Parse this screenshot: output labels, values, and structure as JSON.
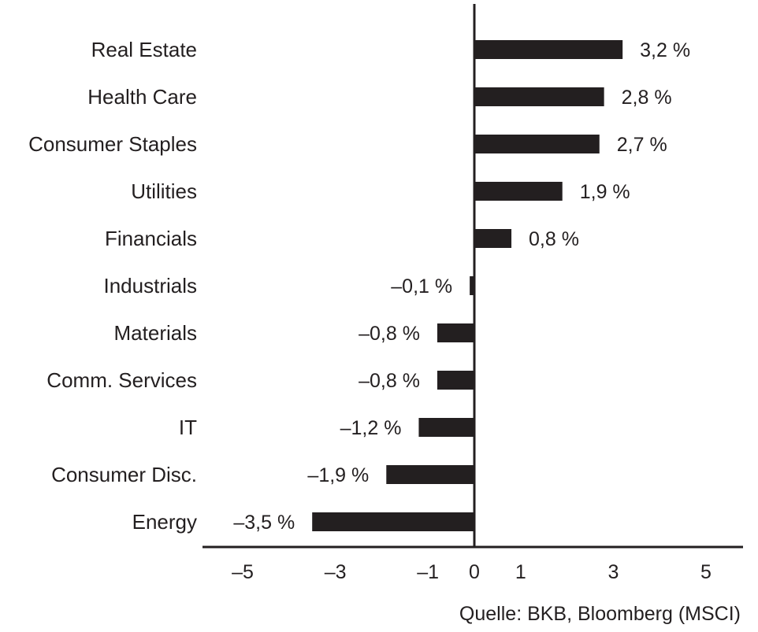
{
  "chart_data": {
    "type": "bar",
    "orientation": "horizontal",
    "categories": [
      "Real Estate",
      "Health Care",
      "Consumer Staples",
      "Utilities",
      "Financials",
      "Industrials",
      "Materials",
      "Comm. Services",
      "IT",
      "Consumer Disc.",
      "Energy"
    ],
    "values": [
      3.2,
      2.8,
      2.7,
      1.9,
      0.8,
      -0.1,
      -0.8,
      -0.8,
      -1.2,
      -1.9,
      -3.5
    ],
    "value_labels": [
      "3,2 %",
      "2,8 %",
      "2,7 %",
      "1,9 %",
      "0,8 %",
      "–0,1 %",
      "–0,8 %",
      "–0,8 %",
      "–1,2 %",
      "–1,9 %",
      "–3,5 %"
    ],
    "xticks": [
      -5,
      -3,
      -1,
      0,
      1,
      3,
      5
    ],
    "xtick_labels": [
      "–5",
      "–3",
      "–1",
      "0",
      "1",
      "3",
      "5"
    ],
    "xlim": [
      -5.8,
      5.8
    ],
    "title": "",
    "xlabel": "",
    "ylabel": "",
    "grid": false,
    "bar_color": "#231f20"
  },
  "source_note": "Quelle: BKB, Bloomberg (MSCI)"
}
